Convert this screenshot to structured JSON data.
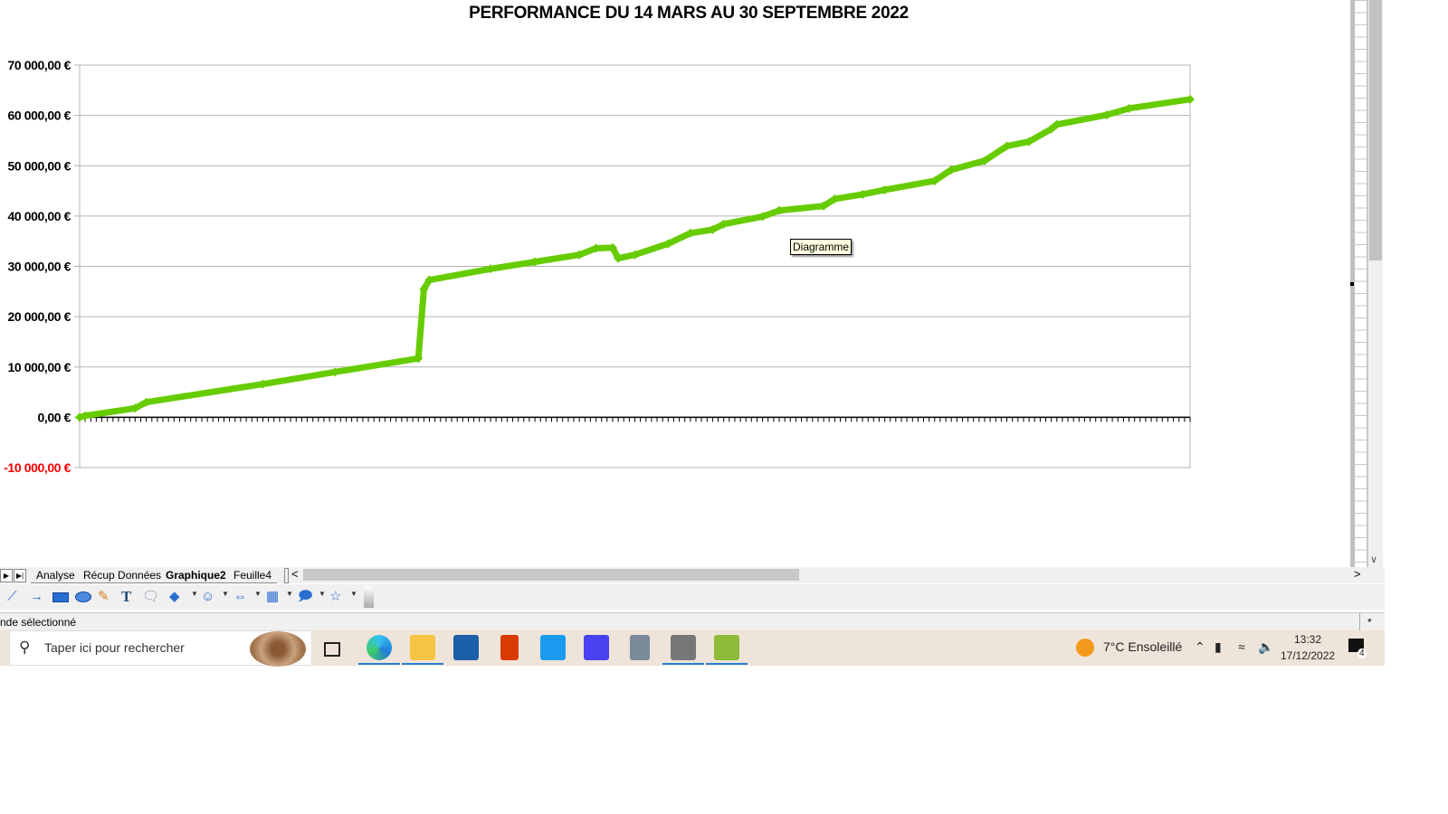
{
  "chart_data": {
    "type": "line",
    "title": "PERFORMANCE DU 14 MARS AU 30 SEPTEMBRE 2022",
    "xlabel": "",
    "ylabel": "",
    "xlim": [
      "2022-03-14",
      "2022-09-30"
    ],
    "ylim": [
      -10000,
      70000
    ],
    "y_ticks": [
      {
        "value": 70000,
        "label": "70 000,00 €"
      },
      {
        "value": 60000,
        "label": "60 000,00 €"
      },
      {
        "value": 50000,
        "label": "50 000,00 €"
      },
      {
        "value": 40000,
        "label": "40 000,00 €"
      },
      {
        "value": 30000,
        "label": "30 000,00 €"
      },
      {
        "value": 20000,
        "label": "20 000,00 €"
      },
      {
        "value": 10000,
        "label": "10 000,00 €"
      },
      {
        "value": 0,
        "label": "0,00 €"
      },
      {
        "value": -10000,
        "label": "-10 000,00 €"
      }
    ],
    "grid": true,
    "legend": "none",
    "series_color": "#66cc00",
    "negative_label_color": "#ff0000",
    "series": [
      {
        "x": [
          "2022-03-14",
          "2022-03-15",
          "2022-03-24",
          "2022-03-26",
          "2022-04-16",
          "2022-04-29",
          "2022-05-14",
          "2022-05-15",
          "2022-05-16",
          "2022-05-27",
          "2022-06-04",
          "2022-06-12",
          "2022-06-15",
          "2022-06-18",
          "2022-06-19",
          "2022-06-22",
          "2022-06-28",
          "2022-07-02",
          "2022-07-06",
          "2022-07-08",
          "2022-07-15",
          "2022-07-18",
          "2022-07-26",
          "2022-07-28",
          "2022-08-02",
          "2022-08-06",
          "2022-08-15",
          "2022-08-18",
          "2022-08-24",
          "2022-08-28",
          "2022-09-01",
          "2022-09-05",
          "2022-09-06",
          "2022-09-15",
          "2022-09-19",
          "2022-09-30"
        ],
        "y": [
          0,
          300,
          1800,
          3000,
          6600,
          9000,
          11700,
          25500,
          27300,
          29500,
          30900,
          32300,
          33600,
          33700,
          31600,
          32300,
          34500,
          36600,
          37300,
          38400,
          39900,
          41100,
          42000,
          43400,
          44300,
          45200,
          47000,
          49200,
          51000,
          53900,
          54800,
          57300,
          58200,
          60100,
          61400,
          63200
        ]
      }
    ],
    "tooltip": "Diagramme"
  },
  "sheet": {
    "tabs": [
      "Analyse",
      "Récup Données",
      "Graphique2",
      "Feuille4"
    ],
    "active_tab": "Graphique2",
    "status_text": "nde sélectionné"
  },
  "taskbar": {
    "search_placeholder": "Taper ici pour rechercher",
    "weather": "7°C  Ensoleillé",
    "time": "13:32",
    "date": "17/12/2022",
    "notification_count": "4"
  }
}
